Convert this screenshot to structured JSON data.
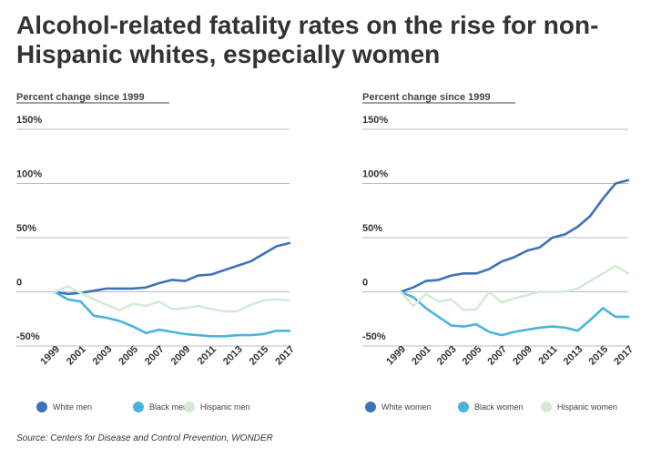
{
  "title": "Alcohol-related fatality rates on the rise for non-Hispanic whites, especially women",
  "source": "Source: Centers for Disease and Control Prevention, WONDER",
  "chart_data": [
    {
      "type": "line",
      "ylabel": "Percent change since 1999",
      "ylim": [
        -50,
        150
      ],
      "yticks": [
        150,
        100,
        50,
        0,
        -50
      ],
      "ytick_labels": [
        "150%",
        "100%",
        "50%",
        "0",
        "-50%"
      ],
      "x": [
        1999,
        2000,
        2001,
        2002,
        2003,
        2004,
        2005,
        2006,
        2007,
        2008,
        2009,
        2010,
        2011,
        2012,
        2013,
        2014,
        2015,
        2016,
        2017
      ],
      "xtick_labels": [
        "1999",
        "2001",
        "2003",
        "2005",
        "2007",
        "2009",
        "2011",
        "2013",
        "2015",
        "2017"
      ],
      "grid": true,
      "legend_position": "bottom",
      "series": [
        {
          "name": "White men",
          "color": "#3d72b8",
          "values": [
            0,
            -2,
            -1,
            1,
            3,
            3,
            3,
            4,
            8,
            11,
            10,
            15,
            16,
            20,
            24,
            28,
            35,
            42,
            45
          ]
        },
        {
          "name": "Black men",
          "color": "#4ab3de",
          "values": [
            0,
            -7,
            -9,
            -22,
            -24,
            -27,
            -32,
            -38,
            -35,
            -37,
            -39,
            -40,
            -41,
            -41,
            -40,
            -40,
            -39,
            -36,
            -36
          ]
        },
        {
          "name": "Hispanic men",
          "color": "#d5ead6",
          "values": [
            0,
            5,
            -1,
            -7,
            -12,
            -17,
            -11,
            -13,
            -9,
            -16,
            -15,
            -13,
            -16,
            -18,
            -18,
            -12,
            -8,
            -7,
            -8
          ]
        }
      ]
    },
    {
      "type": "line",
      "ylabel": "Percent change since 1999",
      "ylim": [
        -50,
        150
      ],
      "yticks": [
        150,
        100,
        50,
        0,
        -50
      ],
      "ytick_labels": [
        "150%",
        "100%",
        "50%",
        "0",
        "-50%"
      ],
      "x": [
        1999,
        2000,
        2001,
        2002,
        2003,
        2004,
        2005,
        2006,
        2007,
        2008,
        2009,
        2010,
        2011,
        2012,
        2013,
        2014,
        2015,
        2016,
        2017
      ],
      "xtick_labels": [
        "1999",
        "2001",
        "2003",
        "2005",
        "2007",
        "2009",
        "2011",
        "2013",
        "2015",
        "2017"
      ],
      "grid": true,
      "legend_position": "bottom",
      "series": [
        {
          "name": "White women",
          "color": "#3d72b8",
          "values": [
            0,
            4,
            10,
            11,
            15,
            17,
            17,
            21,
            28,
            32,
            38,
            41,
            50,
            53,
            60,
            70,
            86,
            100,
            103
          ]
        },
        {
          "name": "Black women",
          "color": "#4ab3de",
          "values": [
            0,
            -5,
            -15,
            -23,
            -31,
            -32,
            -30,
            -37,
            -40,
            -37,
            -35,
            -33,
            -32,
            -33,
            -36,
            -26,
            -15,
            -23,
            -23
          ]
        },
        {
          "name": "Hispanic women",
          "color": "#d5ead6",
          "values": [
            0,
            -13,
            -2,
            -9,
            -7,
            -17,
            -16,
            0,
            -10,
            -6,
            -3,
            0,
            0,
            0,
            3,
            10,
            17,
            24,
            17
          ]
        }
      ]
    }
  ]
}
